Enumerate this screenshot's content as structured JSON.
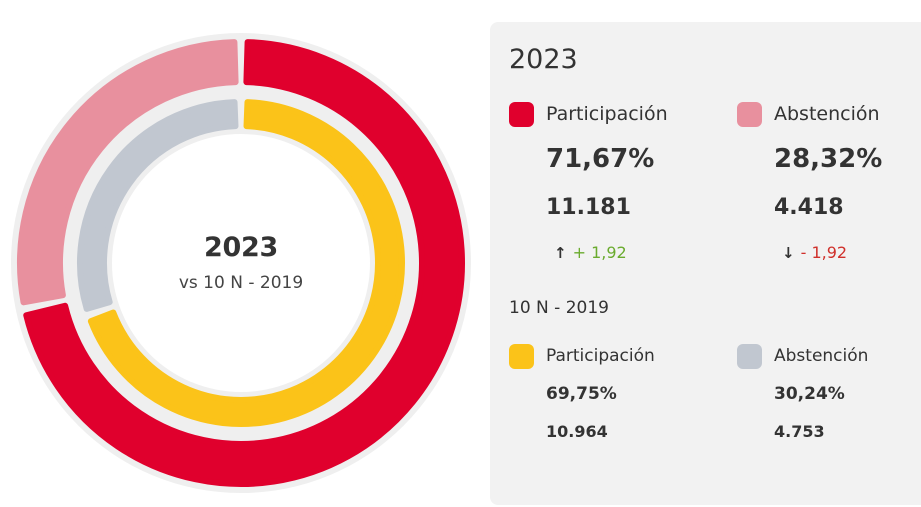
{
  "center": {
    "title": "2023",
    "subtitle": "vs 10 N - 2019"
  },
  "current": {
    "year_label": "2023",
    "participation": {
      "label": "Participación",
      "percent": "71,67%",
      "count": "11.181",
      "delta_arrow": "↑",
      "delta": "+ 1,92",
      "color": "#e0002d"
    },
    "abstention": {
      "label": "Abstención",
      "percent": "28,32%",
      "count": "4.418",
      "delta_arrow": "↓",
      "delta": "- 1,92",
      "color": "#e8909e"
    }
  },
  "previous": {
    "year_label": "10 N - 2019",
    "participation": {
      "label": "Participación",
      "percent": "69,75%",
      "count": "10.964",
      "color": "#fbc319"
    },
    "abstention": {
      "label": "Abstención",
      "percent": "30,24%",
      "count": "4.753",
      "color": "#c1c7d0"
    }
  },
  "chart_data": {
    "type": "pie",
    "title": "2023",
    "subtitle": "vs 10 N - 2019",
    "rings": [
      {
        "name": "2023",
        "position": "outer",
        "slices": [
          {
            "label": "Participación",
            "value": 71.67,
            "color": "#e0002d"
          },
          {
            "label": "Abstención",
            "value": 28.32,
            "color": "#e8909e"
          }
        ]
      },
      {
        "name": "10 N - 2019",
        "position": "inner",
        "slices": [
          {
            "label": "Participación",
            "value": 69.75,
            "color": "#fbc319"
          },
          {
            "label": "Abstención",
            "value": 30.24,
            "color": "#c1c7d0"
          }
        ]
      }
    ],
    "start": "top",
    "direction": "clockwise",
    "legend_position": "right"
  }
}
